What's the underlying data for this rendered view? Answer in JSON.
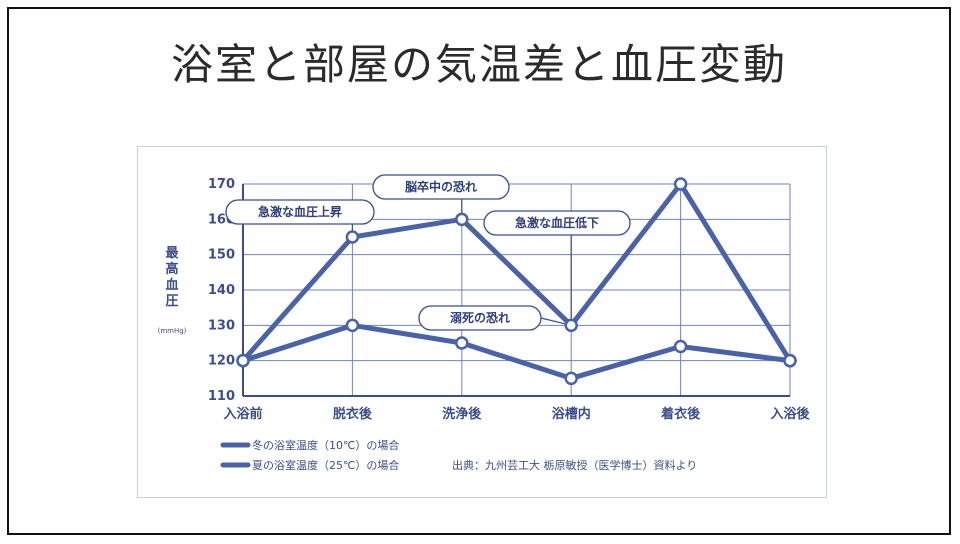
{
  "slide": {
    "title": "浴室と部屋の気温差と血圧変動"
  },
  "chart_data": {
    "type": "line",
    "title": "",
    "ylabel": "最高血圧",
    "yunit": "(mmHg)",
    "ylim": [
      110,
      170
    ],
    "yticks": [
      110,
      120,
      130,
      140,
      150,
      160,
      170
    ],
    "grid": true,
    "categories": [
      "入浴前",
      "脱衣後",
      "洗浄後",
      "浴槽内",
      "着衣後",
      "入浴後"
    ],
    "series": [
      {
        "name": "冬の浴室温度（10℃）の場合",
        "values": [
          120,
          155,
          160,
          130,
          170,
          120
        ],
        "color": "#4a62a8"
      },
      {
        "name": "夏の浴室温度（25℃）の場合",
        "values": [
          120,
          130,
          125,
          115,
          124,
          120
        ],
        "color": "#4a62a8"
      }
    ],
    "annotations": [
      {
        "text": "急激な血圧上昇",
        "series": 0,
        "point": 1
      },
      {
        "text": "脳卒中の恐れ",
        "series": 0,
        "point": 2
      },
      {
        "text": "急激な血圧低下",
        "series": 0,
        "point": 3
      },
      {
        "text": "溺死の恐れ",
        "series": 0,
        "point": 3
      }
    ],
    "legend_position": "bottom-left",
    "source": "出典：九州芸工大 栃原敏授（医学博士）資料より"
  }
}
